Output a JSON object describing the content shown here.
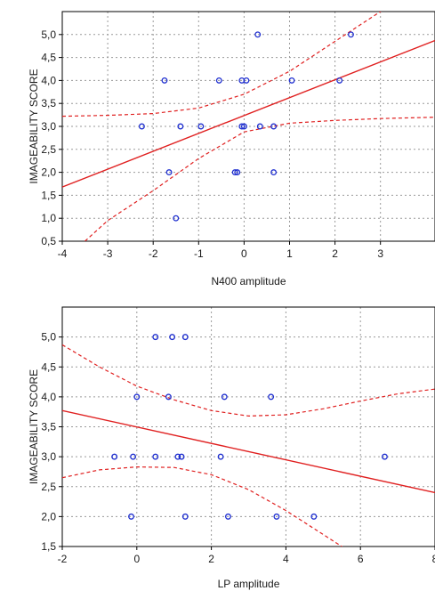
{
  "chart_data": [
    {
      "type": "scatter",
      "xlabel": "N400 amplitude",
      "ylabel": "IMAGEABILITY SCORE",
      "xlim": [
        -4,
        4.2
      ],
      "ylim": [
        0.5,
        5.5
      ],
      "x_ticks": [
        "-4",
        "-3",
        "-2",
        "-1",
        "0",
        "1",
        "2",
        "3"
      ],
      "y_ticks": [
        "0,5",
        "1,0",
        "1,5",
        "2,0",
        "2,5",
        "3,0",
        "3,5",
        "4,0",
        "4,5",
        "5,0"
      ],
      "grid": true,
      "fit_line": {
        "x": [
          -4,
          4.2
        ],
        "y": [
          1.68,
          4.87
        ]
      },
      "confidence_band_upper": {
        "x": [
          -4,
          -3,
          -2,
          -1,
          0,
          1,
          2,
          3,
          3.3
        ],
        "y": [
          3.22,
          3.24,
          3.28,
          3.4,
          3.7,
          4.2,
          4.85,
          5.5,
          5.7
        ]
      },
      "confidence_band_lower": {
        "x": [
          -3.5,
          -3,
          -2,
          -1,
          0,
          1,
          2,
          3,
          4.2
        ],
        "y": [
          0.5,
          0.95,
          1.6,
          2.3,
          2.88,
          3.07,
          3.13,
          3.17,
          3.2
        ]
      },
      "points": [
        {
          "x": 0.3,
          "y": 5.0
        },
        {
          "x": 2.35,
          "y": 5.0
        },
        {
          "x": -1.75,
          "y": 4.0
        },
        {
          "x": -0.55,
          "y": 4.0
        },
        {
          "x": -0.05,
          "y": 4.0
        },
        {
          "x": 0.05,
          "y": 4.0
        },
        {
          "x": 1.05,
          "y": 4.0
        },
        {
          "x": 2.1,
          "y": 4.0
        },
        {
          "x": -2.25,
          "y": 3.0
        },
        {
          "x": -1.4,
          "y": 3.0
        },
        {
          "x": -0.95,
          "y": 3.0
        },
        {
          "x": -0.05,
          "y": 3.0
        },
        {
          "x": 0.0,
          "y": 3.0
        },
        {
          "x": 0.35,
          "y": 3.0
        },
        {
          "x": 0.65,
          "y": 3.0
        },
        {
          "x": -1.65,
          "y": 2.0
        },
        {
          "x": -0.2,
          "y": 2.0
        },
        {
          "x": -0.15,
          "y": 2.0
        },
        {
          "x": 0.65,
          "y": 2.0
        },
        {
          "x": -1.5,
          "y": 1.0
        }
      ]
    },
    {
      "type": "scatter",
      "xlabel": "LP amplitude",
      "ylabel": "IMAGEABILITY SCORE",
      "xlim": [
        -2,
        8
      ],
      "ylim": [
        1.5,
        5.5
      ],
      "x_ticks": [
        "-2",
        "0",
        "2",
        "4",
        "6",
        "8"
      ],
      "y_ticks": [
        "1,5",
        "2,0",
        "2,5",
        "3,0",
        "3,5",
        "4,0",
        "4,5",
        "5,0"
      ],
      "grid": true,
      "fit_line": {
        "x": [
          -2,
          8
        ],
        "y": [
          3.77,
          2.4
        ]
      },
      "confidence_band_upper": {
        "x": [
          -2,
          -1,
          0,
          1,
          2,
          3,
          4,
          5,
          6,
          7,
          8
        ],
        "y": [
          4.87,
          4.5,
          4.18,
          3.95,
          3.77,
          3.68,
          3.7,
          3.8,
          3.93,
          4.05,
          4.13
        ]
      },
      "confidence_band_lower": {
        "x": [
          -2,
          -1,
          0,
          1,
          2,
          3,
          4,
          5,
          6
        ],
        "y": [
          2.65,
          2.78,
          2.83,
          2.82,
          2.7,
          2.45,
          2.1,
          1.7,
          1.3
        ]
      },
      "points": [
        {
          "x": 0.5,
          "y": 5.0
        },
        {
          "x": 0.95,
          "y": 5.0
        },
        {
          "x": 1.3,
          "y": 5.0
        },
        {
          "x": 0.0,
          "y": 4.0
        },
        {
          "x": 0.85,
          "y": 4.0
        },
        {
          "x": 2.35,
          "y": 4.0
        },
        {
          "x": 3.6,
          "y": 4.0
        },
        {
          "x": -0.6,
          "y": 3.0
        },
        {
          "x": -0.1,
          "y": 3.0
        },
        {
          "x": 0.5,
          "y": 3.0
        },
        {
          "x": 1.1,
          "y": 3.0
        },
        {
          "x": 1.2,
          "y": 3.0
        },
        {
          "x": 2.25,
          "y": 3.0
        },
        {
          "x": 6.65,
          "y": 3.0
        },
        {
          "x": -0.15,
          "y": 2.0
        },
        {
          "x": 1.3,
          "y": 2.0
        },
        {
          "x": 2.45,
          "y": 2.0
        },
        {
          "x": 3.75,
          "y": 2.0
        },
        {
          "x": 4.75,
          "y": 2.0
        }
      ]
    }
  ]
}
